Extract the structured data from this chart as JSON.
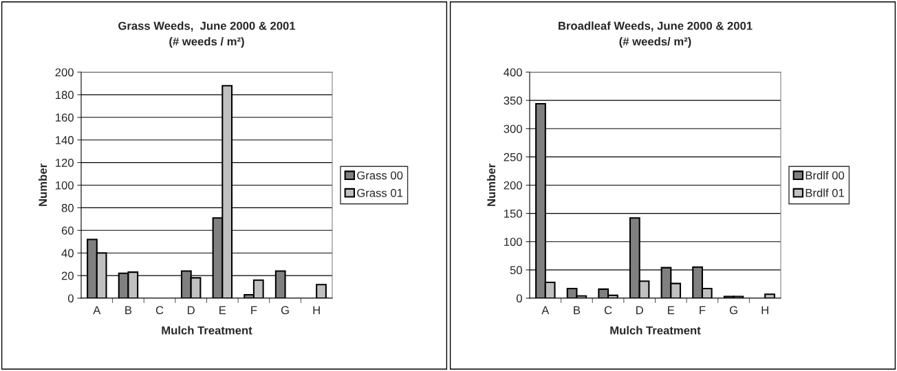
{
  "chart_data": [
    {
      "type": "bar",
      "title": "Grass Weeds,  June 2000 & 2001\n(# weeds / m²)",
      "xlabel": "Mulch Treatment",
      "ylabel": "Number",
      "categories": [
        "A",
        "B",
        "C",
        "D",
        "E",
        "F",
        "G",
        "H"
      ],
      "series": [
        {
          "name": "Grass 00",
          "color": "#808080",
          "values": [
            52,
            22,
            null,
            24,
            71,
            3,
            24,
            null
          ]
        },
        {
          "name": "Grass 01",
          "color": "#c0c0c0",
          "values": [
            40,
            23,
            null,
            18,
            188,
            16,
            null,
            12
          ]
        }
      ],
      "ylim": [
        0,
        200
      ],
      "yticks": [
        0,
        20,
        40,
        60,
        80,
        100,
        120,
        140,
        160,
        180,
        200
      ],
      "grid": "y",
      "legend": "right"
    },
    {
      "type": "bar",
      "title": "Broadleaf Weeds, June 2000 & 2001\n(# weeds/ m²)",
      "xlabel": "Mulch Treatment",
      "ylabel": "Number",
      "categories": [
        "A",
        "B",
        "C",
        "D",
        "E",
        "F",
        "G",
        "H"
      ],
      "series": [
        {
          "name": "Brdlf 00",
          "color": "#808080",
          "values": [
            344,
            17,
            16,
            142,
            54,
            55,
            3,
            null
          ]
        },
        {
          "name": "Brdlf 01",
          "color": "#c0c0c0",
          "values": [
            28,
            4,
            5,
            30,
            26,
            17,
            3,
            7
          ]
        }
      ],
      "ylim": [
        0,
        400
      ],
      "yticks": [
        0,
        50,
        100,
        150,
        200,
        250,
        300,
        350,
        400
      ],
      "grid": "y",
      "legend": "right"
    }
  ]
}
